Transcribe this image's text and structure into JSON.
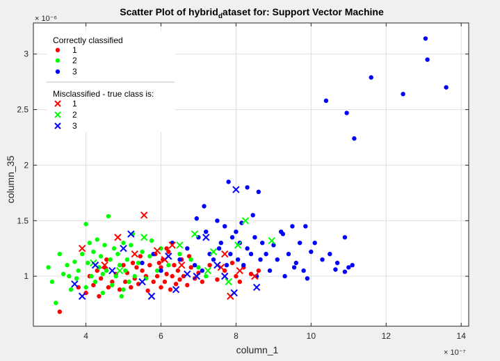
{
  "chart_data": {
    "type": "scatter",
    "title_main": "Scatter Plot of hybrid",
    "title_sub": "d",
    "title_rest": "ataset for: Support Vector Machine",
    "xlabel": "column_1",
    "ylabel": "column_35",
    "x_multiplier": "× 10⁻⁷",
    "y_multiplier": "× 10⁻⁶",
    "xlim": [
      2.6,
      14.2
    ],
    "ylim": [
      0.55,
      3.28
    ],
    "x_ticks": [
      "4",
      "6",
      "8",
      "10",
      "12",
      "14"
    ],
    "x_tick_values": [
      4,
      6,
      8,
      10,
      12,
      14
    ],
    "y_ticks": [
      "1",
      "1.5",
      "2",
      "2.5",
      "3"
    ],
    "y_tick_values": [
      1,
      1.5,
      2,
      2.5,
      3
    ],
    "grid": true,
    "legend_position": "top-left",
    "legend": {
      "correct_title": "Correctly classified",
      "mis_title": "Misclassified - true class is:",
      "entries": [
        "1",
        "2",
        "3"
      ]
    },
    "colors": {
      "1": "#ff0000",
      "2": "#00ff00",
      "3": "#0000ff"
    },
    "series": [
      {
        "name": "1",
        "marker": "dot",
        "points": [
          [
            3.3,
            0.68
          ],
          [
            3.8,
            0.9
          ],
          [
            4.0,
            0.85
          ],
          [
            4.1,
            1.0
          ],
          [
            4.2,
            0.92
          ],
          [
            4.3,
            1.05
          ],
          [
            4.35,
            0.82
          ],
          [
            4.4,
            0.98
          ],
          [
            4.5,
            1.08
          ],
          [
            4.6,
            0.9
          ],
          [
            4.7,
            0.95
          ],
          [
            4.8,
            1.02
          ],
          [
            4.9,
            0.88
          ],
          [
            5.0,
            1.1
          ],
          [
            5.05,
            0.95
          ],
          [
            5.1,
            1.03
          ],
          [
            5.2,
            0.9
          ],
          [
            5.25,
            1.12
          ],
          [
            5.3,
            0.98
          ],
          [
            5.4,
            0.93
          ],
          [
            5.5,
            1.05
          ],
          [
            5.6,
            1.0
          ],
          [
            5.65,
            0.87
          ],
          [
            5.7,
            1.1
          ],
          [
            5.8,
            0.95
          ],
          [
            5.85,
            1.2
          ],
          [
            5.9,
            1.0
          ],
          [
            6.0,
            1.08
          ],
          [
            6.0,
            0.9
          ],
          [
            6.05,
            1.15
          ],
          [
            6.1,
            0.95
          ],
          [
            6.15,
            1.02
          ],
          [
            6.2,
            1.22
          ],
          [
            6.25,
            0.88
          ],
          [
            6.3,
            1.0
          ],
          [
            6.35,
            1.1
          ],
          [
            6.4,
            0.93
          ],
          [
            6.45,
            1.05
          ],
          [
            6.5,
            0.97
          ],
          [
            6.55,
            1.15
          ],
          [
            6.6,
            1.0
          ],
          [
            6.7,
            0.92
          ],
          [
            6.8,
            1.08
          ],
          [
            6.9,
            0.98
          ],
          [
            7.0,
            1.03
          ],
          [
            7.1,
            0.95
          ],
          [
            7.3,
            1.1
          ],
          [
            7.5,
            0.97
          ],
          [
            7.7,
            1.05
          ],
          [
            7.9,
            1.12
          ],
          [
            8.0,
            1.0
          ],
          [
            8.1,
            0.95
          ],
          [
            8.2,
            1.08
          ],
          [
            8.4,
            1.02
          ],
          [
            8.6,
            1.05
          ],
          [
            5.35,
            1.08
          ],
          [
            6.75,
            1.18
          ],
          [
            5.95,
            1.12
          ],
          [
            4.55,
            1.15
          ],
          [
            6.15,
            1.25
          ],
          [
            5.45,
            1.18
          ]
        ]
      },
      {
        "name": "2",
        "marker": "dot",
        "points": [
          [
            3.0,
            1.08
          ],
          [
            3.1,
            0.95
          ],
          [
            3.2,
            0.76
          ],
          [
            3.3,
            1.2
          ],
          [
            3.4,
            1.02
          ],
          [
            3.5,
            1.1
          ],
          [
            3.6,
            0.88
          ],
          [
            3.7,
            1.13
          ],
          [
            3.75,
            0.98
          ],
          [
            3.8,
            1.05
          ],
          [
            3.9,
            1.2
          ],
          [
            4.0,
            1.47
          ],
          [
            4.0,
            0.9
          ],
          [
            4.05,
            1.12
          ],
          [
            4.1,
            1.3
          ],
          [
            4.15,
            1.0
          ],
          [
            4.2,
            1.22
          ],
          [
            4.25,
            0.95
          ],
          [
            4.3,
            1.33
          ],
          [
            4.35,
            1.08
          ],
          [
            4.4,
            1.18
          ],
          [
            4.45,
            0.85
          ],
          [
            4.5,
            1.28
          ],
          [
            4.55,
            1.05
          ],
          [
            4.6,
            1.54
          ],
          [
            4.65,
            1.15
          ],
          [
            4.7,
            0.92
          ],
          [
            4.75,
            1.25
          ],
          [
            4.8,
            1.0
          ],
          [
            4.85,
            1.2
          ],
          [
            4.9,
            1.1
          ],
          [
            5.0,
            1.3
          ],
          [
            5.0,
            0.88
          ],
          [
            5.05,
            1.05
          ],
          [
            5.1,
            1.15
          ],
          [
            5.15,
            0.95
          ],
          [
            5.2,
            1.28
          ],
          [
            5.3,
            1.0
          ],
          [
            5.4,
            1.12
          ],
          [
            5.5,
            1.22
          ],
          [
            5.6,
            0.98
          ],
          [
            5.7,
            1.18
          ],
          [
            5.9,
            1.05
          ],
          [
            6.0,
            1.25
          ],
          [
            6.2,
            1.1
          ],
          [
            6.5,
            1.2
          ],
          [
            6.8,
            1.15
          ],
          [
            7.0,
            1.08
          ],
          [
            7.2,
            1.0
          ],
          [
            5.25,
            1.38
          ],
          [
            4.45,
            1.02
          ],
          [
            3.55,
            1.0
          ],
          [
            4.95,
            0.82
          ],
          [
            5.75,
            1.32
          ]
        ]
      },
      {
        "name": "3",
        "marker": "dot",
        "points": [
          [
            5.5,
            1.12
          ],
          [
            5.8,
            1.2
          ],
          [
            6.0,
            1.05
          ],
          [
            6.3,
            1.3
          ],
          [
            6.5,
            1.15
          ],
          [
            6.7,
            1.25
          ],
          [
            6.9,
            1.1
          ],
          [
            7.0,
            1.35
          ],
          [
            7.1,
            1.05
          ],
          [
            7.2,
            1.4
          ],
          [
            7.3,
            1.2
          ],
          [
            7.4,
            1.15
          ],
          [
            7.5,
            1.5
          ],
          [
            7.55,
            1.25
          ],
          [
            7.6,
            1.3
          ],
          [
            7.7,
            1.45
          ],
          [
            7.75,
            1.1
          ],
          [
            7.8,
            1.85
          ],
          [
            7.85,
            1.2
          ],
          [
            7.9,
            1.35
          ],
          [
            8.0,
            1.4
          ],
          [
            8.05,
            1.15
          ],
          [
            8.1,
            1.3
          ],
          [
            8.15,
            1.48
          ],
          [
            8.2,
            1.1
          ],
          [
            8.3,
            1.25
          ],
          [
            8.4,
            1.2
          ],
          [
            8.5,
            1.35
          ],
          [
            8.55,
            1.0
          ],
          [
            8.6,
            1.76
          ],
          [
            8.65,
            1.15
          ],
          [
            8.7,
            1.3
          ],
          [
            8.8,
            1.2
          ],
          [
            8.9,
            1.05
          ],
          [
            9.0,
            1.28
          ],
          [
            9.1,
            1.15
          ],
          [
            9.2,
            1.4
          ],
          [
            9.3,
            1.0
          ],
          [
            9.4,
            1.2
          ],
          [
            9.5,
            1.45
          ],
          [
            9.6,
            1.12
          ],
          [
            9.7,
            1.3
          ],
          [
            9.8,
            1.05
          ],
          [
            9.85,
            1.45
          ],
          [
            9.9,
            0.98
          ],
          [
            10.0,
            1.22
          ],
          [
            10.1,
            1.3
          ],
          [
            10.3,
            1.15
          ],
          [
            10.5,
            1.2
          ],
          [
            10.7,
            1.12
          ],
          [
            10.9,
            1.35
          ],
          [
            11.0,
            1.08
          ],
          [
            11.1,
            1.1
          ],
          [
            7.15,
            1.63
          ],
          [
            6.95,
            1.52
          ],
          [
            8.3,
            1.8
          ],
          [
            8.45,
            1.55
          ],
          [
            9.25,
            1.38
          ],
          [
            9.55,
            1.08
          ],
          [
            10.65,
            1.06
          ],
          [
            10.9,
            1.04
          ],
          [
            10.4,
            2.58
          ],
          [
            10.95,
            2.47
          ],
          [
            11.15,
            2.24
          ],
          [
            11.6,
            2.79
          ],
          [
            12.45,
            2.64
          ],
          [
            13.05,
            3.14
          ],
          [
            13.1,
            2.95
          ],
          [
            13.6,
            2.7
          ]
        ]
      },
      {
        "name": "1",
        "marker": "x",
        "points": [
          [
            3.9,
            1.25
          ],
          [
            4.5,
            1.1
          ],
          [
            4.85,
            1.35
          ],
          [
            5.3,
            1.2
          ],
          [
            5.55,
            1.55
          ],
          [
            5.9,
            1.23
          ],
          [
            6.1,
            1.15
          ],
          [
            6.3,
            1.28
          ],
          [
            6.55,
            1.1
          ],
          [
            7.6,
            1.08
          ],
          [
            7.7,
            1.2
          ],
          [
            7.85,
            0.82
          ],
          [
            8.1,
            1.05
          ],
          [
            8.5,
            1.0
          ]
        ]
      },
      {
        "name": "2",
        "marker": "x",
        "points": [
          [
            4.2,
            1.12
          ],
          [
            4.9,
            1.05
          ],
          [
            5.55,
            1.35
          ],
          [
            6.5,
            1.28
          ],
          [
            6.9,
            1.38
          ],
          [
            7.25,
            1.05
          ],
          [
            7.4,
            1.22
          ],
          [
            7.8,
            0.95
          ],
          [
            8.05,
            1.28
          ],
          [
            8.25,
            1.5
          ],
          [
            8.95,
            1.32
          ]
        ]
      },
      {
        "name": "3",
        "marker": "x",
        "points": [
          [
            3.7,
            0.93
          ],
          [
            3.9,
            0.82
          ],
          [
            4.25,
            1.1
          ],
          [
            4.7,
            1.05
          ],
          [
            5.0,
            1.25
          ],
          [
            5.2,
            1.38
          ],
          [
            5.5,
            0.95
          ],
          [
            5.75,
            0.82
          ],
          [
            6.2,
            1.18
          ],
          [
            6.4,
            0.88
          ],
          [
            6.7,
            1.02
          ],
          [
            6.95,
            1.0
          ],
          [
            7.2,
            1.35
          ],
          [
            7.5,
            1.1
          ],
          [
            7.7,
            1.0
          ],
          [
            7.95,
            0.85
          ],
          [
            8.0,
            1.78
          ],
          [
            8.55,
            0.9
          ]
        ]
      }
    ]
  }
}
